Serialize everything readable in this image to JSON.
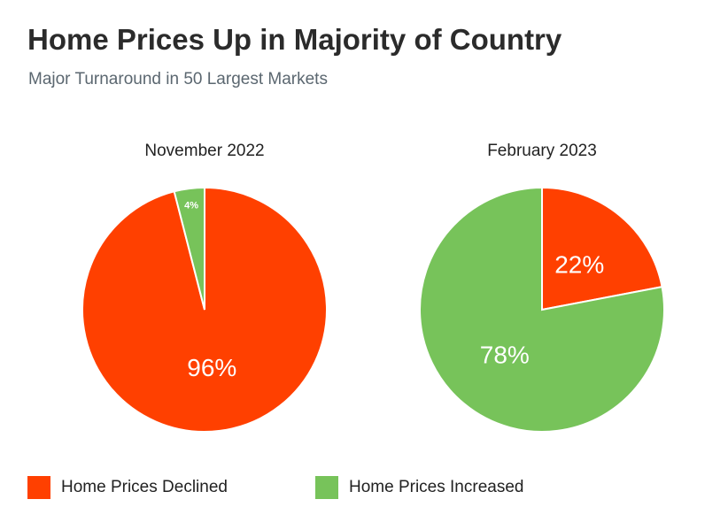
{
  "title": "Home Prices Up in Majority of Country",
  "subtitle": "Major Turnaround in 50 Largest Markets",
  "colors": {
    "declined": "#ff4000",
    "increased": "#77c35a"
  },
  "chart_data": [
    {
      "type": "pie",
      "title": "November 2022",
      "slices": [
        {
          "label": "Home Prices Declined",
          "value": 96,
          "display": "96%",
          "color": "#ff4000"
        },
        {
          "label": "Home Prices Increased",
          "value": 4,
          "display": "4%",
          "color": "#77c35a"
        }
      ]
    },
    {
      "type": "pie",
      "title": "February 2023",
      "slices": [
        {
          "label": "Home Prices Declined",
          "value": 22,
          "display": "22%",
          "color": "#ff4000"
        },
        {
          "label": "Home Prices Increased",
          "value": 78,
          "display": "78%",
          "color": "#77c35a"
        }
      ]
    }
  ],
  "legend": [
    {
      "label": "Home Prices Declined",
      "color": "#ff4000"
    },
    {
      "label": "Home Prices Increased",
      "color": "#77c35a"
    }
  ]
}
